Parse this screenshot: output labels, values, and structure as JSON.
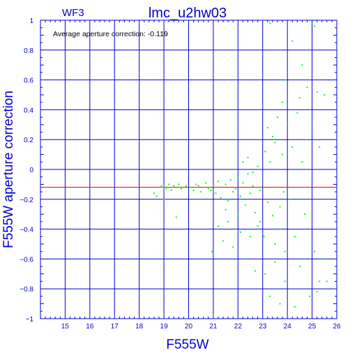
{
  "chart_data": {
    "type": "scatter",
    "title": "lmc_u2hw03",
    "chip_label": "WF3",
    "annotation": "Average aperture correction: -0.119",
    "xlabel": "F555W",
    "ylabel": "F555W aperture correction",
    "xlim": [
      14,
      26
    ],
    "ylim": [
      -1,
      1
    ],
    "x_ticks": [
      "15",
      "16",
      "17",
      "18",
      "19",
      "20",
      "21",
      "22",
      "23",
      "24",
      "25",
      "26"
    ],
    "y_ticks": [
      "−1",
      "−0.8",
      "−0.6",
      "−0.4",
      "−0.2",
      "0",
      "0.2",
      "0.4",
      "0.6",
      "0.8",
      "1"
    ],
    "grid": true,
    "reference_line_y": -0.119,
    "colors": {
      "axis": "#0000cc",
      "grid": "#0000cc",
      "points": "#00ff00",
      "reference_line": "#ff0000",
      "annotation": "#000000"
    },
    "points": [
      [
        18.6,
        -0.16
      ],
      [
        18.7,
        -0.18
      ],
      [
        18.9,
        -0.11
      ],
      [
        19.0,
        -0.12
      ],
      [
        19.1,
        -0.13
      ],
      [
        19.2,
        -0.1
      ],
      [
        19.3,
        -0.14
      ],
      [
        19.4,
        -0.11
      ],
      [
        19.5,
        -0.12
      ],
      [
        19.6,
        -0.1
      ],
      [
        19.7,
        -0.13
      ],
      [
        19.8,
        -0.12
      ],
      [
        19.9,
        -0.11
      ],
      [
        19.5,
        -0.32
      ],
      [
        19.0,
        -0.2
      ],
      [
        20.1,
        -0.12
      ],
      [
        20.2,
        -0.14
      ],
      [
        20.3,
        -0.1
      ],
      [
        20.4,
        -0.11
      ],
      [
        20.5,
        -0.15
      ],
      [
        20.6,
        -0.12
      ],
      [
        20.7,
        -0.09
      ],
      [
        20.8,
        -0.13
      ],
      [
        20.9,
        -0.14
      ],
      [
        20.95,
        -0.55
      ],
      [
        21.0,
        -0.11
      ],
      [
        21.1,
        -0.16
      ],
      [
        21.2,
        -0.08
      ],
      [
        21.3,
        -0.19
      ],
      [
        21.4,
        -0.12
      ],
      [
        21.5,
        -0.1
      ],
      [
        21.6,
        -0.21
      ],
      [
        21.7,
        -0.07
      ],
      [
        21.8,
        -0.15
      ],
      [
        21.9,
        -0.13
      ],
      [
        21.2,
        -0.38
      ],
      [
        21.4,
        -0.48
      ],
      [
        21.6,
        -0.35
      ],
      [
        21.8,
        -0.52
      ],
      [
        21.5,
        -0.27
      ],
      [
        22.0,
        -0.05
      ],
      [
        22.1,
        -0.18
      ],
      [
        22.2,
        -0.09
      ],
      [
        22.3,
        -0.24
      ],
      [
        22.4,
        -0.03
      ],
      [
        22.5,
        -0.16
      ],
      [
        22.6,
        -0.11
      ],
      [
        22.7,
        -0.29
      ],
      [
        22.8,
        0.02
      ],
      [
        22.9,
        -0.14
      ],
      [
        22.1,
        -0.42
      ],
      [
        22.3,
        -0.6
      ],
      [
        22.5,
        -0.45
      ],
      [
        22.7,
        -0.68
      ],
      [
        22.9,
        -0.35
      ],
      [
        22.2,
        0.05
      ],
      [
        22.4,
        0.08
      ],
      [
        22.6,
        -0.02
      ],
      [
        22.8,
        -0.38
      ],
      [
        22.0,
        -0.3
      ],
      [
        23.0,
        -0.08
      ],
      [
        23.1,
        0.12
      ],
      [
        23.2,
        -0.22
      ],
      [
        23.3,
        0.05
      ],
      [
        23.4,
        -0.31
      ],
      [
        23.5,
        0.18
      ],
      [
        23.6,
        -0.12
      ],
      [
        23.7,
        -0.4
      ],
      [
        23.8,
        0.1
      ],
      [
        23.9,
        -0.55
      ],
      [
        23.1,
        -0.7
      ],
      [
        23.3,
        -0.85
      ],
      [
        23.5,
        -0.62
      ],
      [
        23.7,
        -0.9
      ],
      [
        23.9,
        -0.75
      ],
      [
        23.2,
        0.28
      ],
      [
        23.4,
        0.22
      ],
      [
        23.6,
        0.35
      ],
      [
        23.8,
        0.45
      ],
      [
        23.9,
        0.6
      ],
      [
        23.3,
        0.98
      ],
      [
        23.5,
        -0.5
      ],
      [
        23.7,
        -0.25
      ],
      [
        23.05,
        -0.45
      ],
      [
        23.85,
        -0.15
      ],
      [
        24.0,
        0.3
      ],
      [
        24.1,
        -0.2
      ],
      [
        24.2,
        0.15
      ],
      [
        24.3,
        -0.45
      ],
      [
        24.4,
        0.38
      ],
      [
        24.5,
        -0.65
      ],
      [
        24.6,
        0.05
      ],
      [
        24.7,
        -0.3
      ],
      [
        24.8,
        0.55
      ],
      [
        24.9,
        -0.85
      ],
      [
        24.2,
        0.86
      ],
      [
        24.6,
        0.7
      ],
      [
        24.5,
        0.48
      ],
      [
        24.3,
        -0.92
      ],
      [
        24.8,
        0.2
      ],
      [
        25.0,
        0.28
      ],
      [
        25.1,
        -0.55
      ],
      [
        25.2,
        0.52
      ],
      [
        25.3,
        -0.75
      ],
      [
        25.1,
        0.96
      ],
      [
        25.4,
        -0.6
      ],
      [
        25.2,
        -0.82
      ],
      [
        25.5,
        0.5
      ],
      [
        25.6,
        -0.75
      ],
      [
        25.3,
        0.15
      ]
    ]
  }
}
